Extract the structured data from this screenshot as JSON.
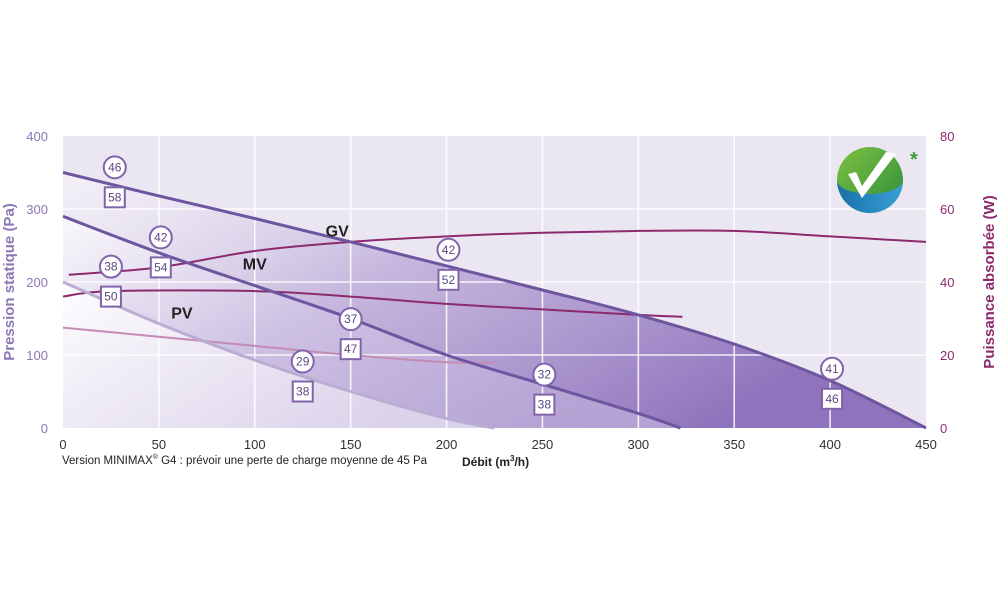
{
  "chart_data": {
    "type": "line",
    "xlabel": "Débit (m³/h)",
    "xlabel_base": "Débit (m",
    "xlabel_sup": "3",
    "xlabel_end": "/h)",
    "ylabel_left": "Pression statique (Pa)",
    "ylabel_right": "Puissance absorbée (W)",
    "xlim": [
      0,
      450
    ],
    "ylim_left": [
      0,
      400
    ],
    "ylim_right": [
      0,
      80
    ],
    "x_ticks": [
      "0",
      "50",
      "100",
      "150",
      "200",
      "250",
      "300",
      "350",
      "400",
      "450"
    ],
    "y_ticks_left": [
      "0",
      "100",
      "200",
      "300",
      "400"
    ],
    "y_ticks_right": [
      "0",
      "20",
      "40",
      "60",
      "80"
    ],
    "grid": true,
    "footnote": {
      "prefix": "Version MINIMAX",
      "sup": "®",
      "suffix": " G4 : prévoir une perte de charge moyenne de 45 Pa"
    },
    "pressure_series": [
      {
        "name": "GV",
        "points": [
          [
            0,
            350
          ],
          [
            50,
            318
          ],
          [
            100,
            287
          ],
          [
            150,
            255
          ],
          [
            200,
            222
          ],
          [
            250,
            189
          ],
          [
            300,
            155
          ],
          [
            350,
            115
          ],
          [
            400,
            65
          ],
          [
            450,
            0
          ]
        ]
      },
      {
        "name": "MV",
        "points": [
          [
            0,
            290
          ],
          [
            50,
            240
          ],
          [
            100,
            195
          ],
          [
            150,
            150
          ],
          [
            200,
            100
          ],
          [
            250,
            60
          ],
          [
            300,
            20
          ],
          [
            322,
            0
          ]
        ]
      },
      {
        "name": "PV",
        "points": [
          [
            0,
            200
          ],
          [
            50,
            143
          ],
          [
            100,
            93
          ],
          [
            150,
            50
          ],
          [
            200,
            13
          ],
          [
            225,
            0
          ]
        ]
      }
    ],
    "power_series": [
      {
        "points": [
          [
            3,
            42
          ],
          [
            50,
            44
          ],
          [
            100,
            48.5
          ],
          [
            150,
            51
          ],
          [
            200,
            52.5
          ],
          [
            250,
            53.5
          ],
          [
            300,
            54
          ],
          [
            350,
            54
          ],
          [
            400,
            52.5
          ],
          [
            450,
            51
          ]
        ]
      },
      {
        "points": [
          [
            0,
            36
          ],
          [
            25,
            37.5
          ],
          [
            100,
            37.5
          ],
          [
            150,
            36
          ],
          [
            200,
            34
          ],
          [
            250,
            32.5
          ],
          [
            300,
            31
          ],
          [
            323,
            30.5
          ]
        ]
      },
      {
        "points": [
          [
            0,
            27.5
          ],
          [
            50,
            25
          ],
          [
            100,
            22.5
          ],
          [
            150,
            20
          ],
          [
            200,
            18
          ],
          [
            225,
            18
          ]
        ]
      }
    ],
    "point_markers": [
      {
        "x": 27,
        "sound": "46",
        "power": "58",
        "power_y": 316
      },
      {
        "x": 51,
        "sound": "42",
        "power": "54",
        "power_y": 220
      },
      {
        "x": 25,
        "sound": "38",
        "power": "50",
        "power_y": 180
      },
      {
        "x": 150,
        "sound": "37",
        "power": "47",
        "power_y": 108
      },
      {
        "x": 125,
        "sound": "29",
        "power": "38",
        "power_y": 50
      },
      {
        "x": 201,
        "sound": "42",
        "power": "52",
        "power_y": 203
      },
      {
        "x": 251,
        "sound": "32",
        "power": "38",
        "power_y": 32
      },
      {
        "x": 401,
        "sound": "41",
        "power": "46",
        "power_y": 40
      }
    ],
    "colors": {
      "background": "#ebe7f2",
      "grid": "#ffffff",
      "pressure_line": "#6e55a0",
      "pv_line": "#b9aed2",
      "power_line": "#8c2a6e",
      "pv_power_line": "#c48bb4",
      "left_axis_text": "#8c78b4",
      "right_axis_text": "#8c2a6e",
      "marker": "#8064aa"
    }
  },
  "logo": {
    "name": "certification-check-logo",
    "asterisk": "*"
  }
}
